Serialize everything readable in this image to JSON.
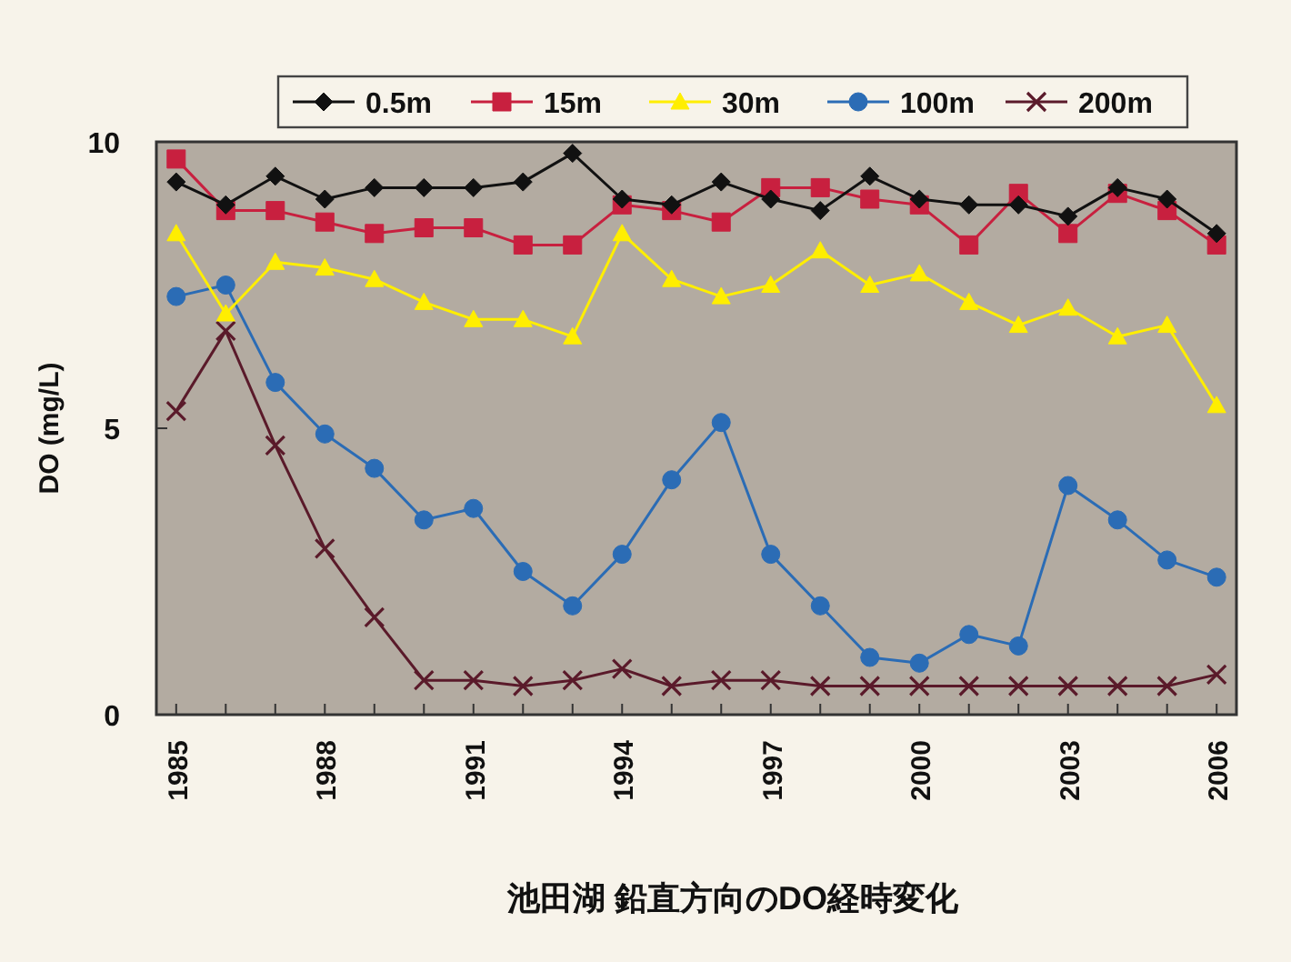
{
  "chart_data": {
    "type": "line",
    "title": "池田湖 鉛直方向のDO経時変化",
    "ylabel": "DO (mg/L)",
    "x": [
      1985,
      1986,
      1987,
      1988,
      1989,
      1990,
      1991,
      1992,
      1993,
      1994,
      1995,
      1996,
      1997,
      1998,
      1999,
      2000,
      2001,
      2002,
      2003,
      2004,
      2005,
      2006
    ],
    "xlim": [
      1984.6,
      2006.4
    ],
    "xticks": [
      1985,
      {
        "value": 1986,
        "label": null
      },
      {
        "value": 1987,
        "label": null
      },
      1988,
      {
        "value": 1989,
        "label": null
      },
      {
        "value": 1990,
        "label": null
      },
      1991,
      {
        "value": 1992,
        "label": null
      },
      {
        "value": 1993,
        "label": null
      },
      1994,
      {
        "value": 1995,
        "label": null
      },
      {
        "value": 1996,
        "label": null
      },
      1997,
      {
        "value": 1998,
        "label": null
      },
      {
        "value": 1999,
        "label": null
      },
      2000,
      {
        "value": 2001,
        "label": null
      },
      {
        "value": 2002,
        "label": null
      },
      2003,
      {
        "value": 2004,
        "label": null
      },
      {
        "value": 2005,
        "label": null
      },
      2006
    ],
    "ylim": [
      0,
      10
    ],
    "yticks": [
      0,
      5,
      10
    ],
    "grid": false,
    "legend": "top",
    "series": [
      {
        "name": "0.5m",
        "color": "#111111",
        "marker": "diamond",
        "values": [
          9.3,
          8.9,
          9.4,
          9.0,
          9.2,
          9.2,
          9.2,
          9.3,
          9.8,
          9.0,
          8.9,
          9.3,
          9.0,
          8.8,
          9.4,
          9.0,
          8.9,
          8.9,
          8.7,
          9.2,
          9.0,
          8.4
        ]
      },
      {
        "name": "15m",
        "color": "#c8203f",
        "marker": "square",
        "values": [
          9.7,
          8.8,
          8.8,
          8.6,
          8.4,
          8.5,
          8.5,
          8.2,
          8.2,
          8.9,
          8.8,
          8.6,
          9.2,
          9.2,
          9.0,
          8.9,
          8.2,
          9.1,
          8.4,
          9.1,
          8.8,
          8.2
        ]
      },
      {
        "name": "30m",
        "color": "#ffee00",
        "marker": "triangle",
        "values": [
          8.4,
          7.0,
          7.9,
          7.8,
          7.6,
          7.2,
          6.9,
          6.9,
          6.6,
          8.4,
          7.6,
          7.3,
          7.5,
          8.1,
          7.5,
          7.7,
          7.2,
          6.8,
          7.1,
          6.6,
          6.8,
          5.4
        ]
      },
      {
        "name": "100m",
        "color": "#2b6cb5",
        "marker": "circle",
        "values": [
          7.3,
          7.5,
          5.8,
          4.9,
          4.3,
          3.4,
          3.6,
          2.5,
          1.9,
          2.8,
          4.1,
          5.1,
          2.8,
          1.9,
          1.0,
          0.9,
          1.4,
          1.2,
          4.0,
          3.4,
          2.7,
          2.4
        ]
      },
      {
        "name": "200m",
        "color": "#5a1a2a",
        "marker": "cross",
        "values": [
          5.3,
          6.7,
          4.7,
          2.9,
          1.7,
          0.6,
          0.6,
          0.5,
          0.6,
          0.8,
          0.5,
          0.6,
          0.6,
          0.5,
          0.5,
          0.5,
          0.5,
          0.5,
          0.5,
          0.5,
          0.5,
          0.7
        ]
      }
    ]
  }
}
